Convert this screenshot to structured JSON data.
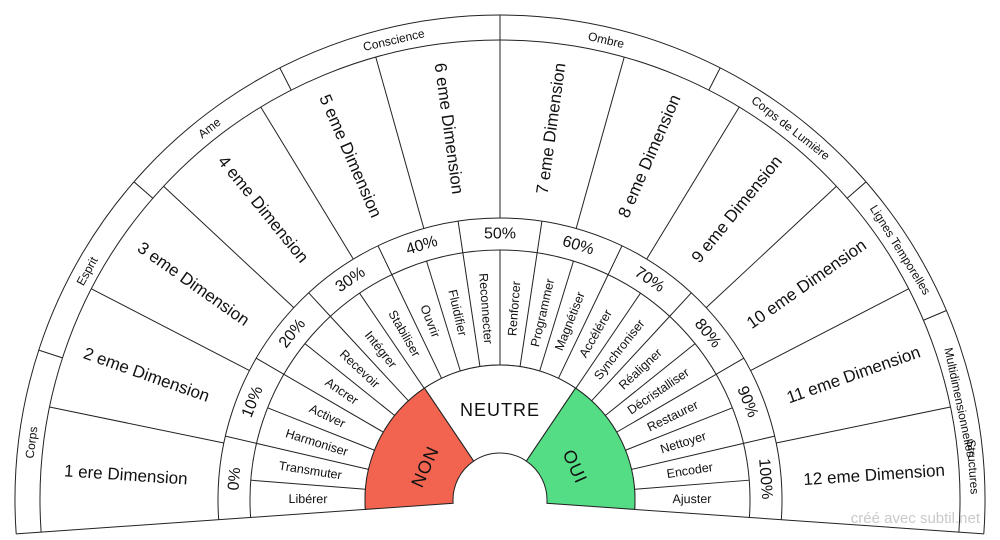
{
  "outer_labels": [
    "Corps",
    "Esprit",
    "Ame",
    "Conscience",
    "Ombre",
    "Corps de Lumière",
    "Lignes Temporelles",
    "Multidimensionnelles",
    "Structures"
  ],
  "dimensions": [
    "1 ere Dimension",
    "2 eme Dimension",
    "3 eme Dimension",
    "4 eme Dimension",
    "5 eme Dimension",
    "6 eme Dimension",
    "7 eme Dimension",
    "8 eme Dimension",
    "9 eme Dimension",
    "10 eme Dimension",
    "11 eme Dimension",
    "12 eme Dimension"
  ],
  "percentages": [
    "0%",
    "10%",
    "20%",
    "30%",
    "40%",
    "50%",
    "60%",
    "70%",
    "80%",
    "90%",
    "100%"
  ],
  "actions": [
    "Libérer",
    "Transmuter",
    "Harmoniser",
    "Activer",
    "Ancrer",
    "Recevoir",
    "Intégrer",
    "Stabiliser",
    "Ouvrir",
    "Fluidifier",
    "Reconnecter",
    "Renforcer",
    "Programmer",
    "Magnétiser",
    "Accélérer",
    "Synchroniser",
    "Réaligner",
    "Décristalliser",
    "Restaurer",
    "Nettoyer",
    "Encoder",
    "Ajuster"
  ],
  "center": {
    "non": "NON",
    "neutre": "NEUTRE",
    "oui": "OUI"
  },
  "colors": {
    "non": "#f26450",
    "oui": "#55dd85",
    "stroke": "#222222"
  },
  "credit": "créé avec subtil.net"
}
